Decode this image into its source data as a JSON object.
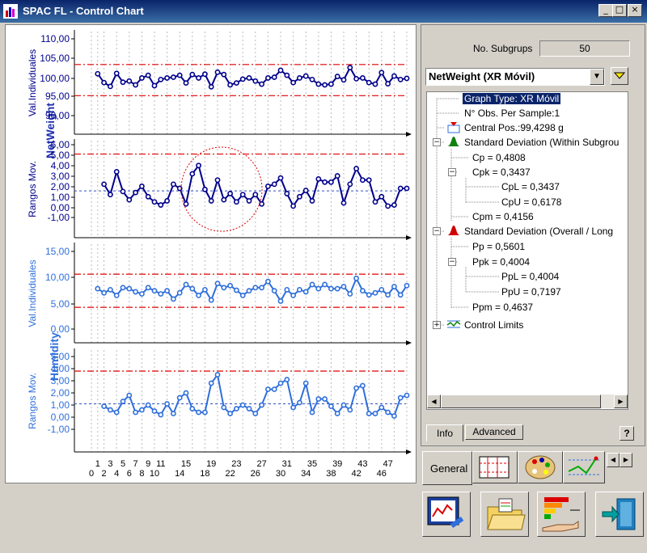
{
  "window": {
    "title": "SPAC FL - Control Chart"
  },
  "colors": {
    "series": "#00008b",
    "series2": "#2f6fdb",
    "limit": "#e00000",
    "title_blue": "#1e2fb0"
  },
  "chart": {
    "group1_title": "NetWeight",
    "group2_title": "Humidity",
    "panels": [
      {
        "ylabel": "Val.Individuales",
        "ticks": [
          "110,00",
          "105,00",
          "100,00",
          "95,00",
          "90,00"
        ]
      },
      {
        "ylabel": "Rangos Mov.",
        "ticks": [
          "6,00",
          "5,00",
          "4,00",
          "3,00",
          "2,00",
          "1,00",
          "0,00",
          "-1,00"
        ]
      },
      {
        "ylabel": "Val.Individuales",
        "ticks": [
          "15,00",
          "10,00",
          "5,00",
          "0,00"
        ]
      },
      {
        "ylabel": "Rangos Mov.",
        "ticks": [
          "5,00",
          "4,00",
          "3,00",
          "2,00",
          "1,00",
          "0,00",
          "-1,00"
        ]
      }
    ],
    "x_ticks_odd": [
      "1",
      "3",
      "5",
      "7",
      "9",
      "11",
      "15",
      "19",
      "23",
      "27",
      "31",
      "35",
      "39",
      "43",
      "47"
    ],
    "x_ticks_even": [
      "0",
      "2",
      "4",
      "6",
      "8",
      "10",
      "14",
      "18",
      "22",
      "26",
      "30",
      "34",
      "38",
      "42",
      "46"
    ]
  },
  "chart_data": [
    {
      "type": "line",
      "title": "NetWeight",
      "ylabel": "Val.Individuales",
      "ylim": [
        87,
        111
      ],
      "ucl": 103.3,
      "lcl": 95.2,
      "center": 99.43,
      "x": [
        1,
        2,
        3,
        4,
        5,
        6,
        7,
        8,
        9,
        10,
        11,
        12,
        13,
        14,
        15,
        16,
        17,
        18,
        19,
        20,
        21,
        22,
        23,
        24,
        25,
        26,
        27,
        28,
        29,
        30,
        31,
        32,
        33,
        34,
        35,
        36,
        37,
        38,
        39,
        40,
        41,
        42,
        43,
        44,
        45,
        46,
        47,
        48,
        49,
        50
      ],
      "values": [
        100.9,
        98.6,
        97.6,
        101.0,
        98.7,
        99.0,
        98.0,
        99.8,
        100.5,
        97.8,
        99.4,
        99.8,
        100.0,
        100.5,
        98.5,
        100.7,
        99.8,
        100.8,
        97.5,
        101.3,
        100.7,
        98.0,
        98.5,
        99.5,
        99.8,
        99.0,
        98.2,
        99.8,
        100.0,
        101.8,
        100.5,
        98.6,
        99.8,
        100.3,
        99.4,
        98.2,
        98.0,
        98.2,
        100.2,
        99.3,
        102.5,
        99.6,
        99.8,
        98.6,
        98.2,
        101.2,
        98.3,
        100.3,
        99.4,
        99.7
      ]
    },
    {
      "type": "line",
      "title": "NetWeight",
      "ylabel": "Rangos Mov.",
      "ylim": [
        -1.5,
        6.3
      ],
      "ucl": 5.1,
      "center": 1.56,
      "x": [
        2,
        3,
        4,
        5,
        6,
        7,
        8,
        9,
        10,
        11,
        12,
        13,
        14,
        15,
        16,
        17,
        18,
        19,
        20,
        21,
        22,
        23,
        24,
        25,
        26,
        27,
        28,
        29,
        30,
        31,
        32,
        33,
        34,
        35,
        36,
        37,
        38,
        39,
        40,
        41,
        42,
        43,
        44,
        45,
        46,
        47,
        48,
        49,
        50
      ],
      "values": [
        2.2,
        1.2,
        3.4,
        1.5,
        0.7,
        1.4,
        2.0,
        1.0,
        0.5,
        0.2,
        0.6,
        2.2,
        1.8,
        0.3,
        3.2,
        4.0,
        1.7,
        0.6,
        2.6,
        0.7,
        1.3,
        0.5,
        1.2,
        0.6,
        1.2,
        0.3,
        2.0,
        2.2,
        2.8,
        1.3,
        0.1,
        1.0,
        1.6,
        0.6,
        2.7,
        2.4,
        2.4,
        3.0,
        0.4,
        2.2,
        3.7,
        2.6,
        2.6,
        0.5,
        1.0,
        0.1,
        0.2,
        1.8,
        1.8
      ]
    },
    {
      "type": "line",
      "title": "Humidity",
      "ylabel": "Val.Individuales",
      "ylim": [
        -3,
        16
      ],
      "ucl": 10.6,
      "lcl": 4.2,
      "center": 7.4,
      "x": [
        1,
        2,
        3,
        4,
        5,
        6,
        7,
        8,
        9,
        10,
        11,
        12,
        13,
        14,
        15,
        16,
        17,
        18,
        19,
        20,
        21,
        22,
        23,
        24,
        25,
        26,
        27,
        28,
        29,
        30,
        31,
        32,
        33,
        34,
        35,
        36,
        37,
        38,
        39,
        40,
        41,
        42,
        43,
        44,
        45,
        46,
        47,
        48,
        49,
        50
      ],
      "values": [
        7.8,
        7.0,
        7.6,
        6.5,
        8.0,
        7.8,
        7.2,
        6.8,
        8.0,
        7.4,
        6.8,
        7.4,
        5.8,
        7.0,
        8.6,
        7.8,
        6.5,
        7.6,
        5.6,
        8.8,
        8.0,
        8.4,
        7.5,
        6.5,
        7.4,
        8.0,
        8.0,
        9.2,
        7.4,
        5.4,
        7.6,
        6.5,
        7.6,
        7.2,
        8.6,
        7.8,
        8.6,
        7.8,
        7.8,
        8.2,
        6.8,
        9.8,
        7.4,
        6.6,
        7.0,
        7.6,
        6.6,
        8.2,
        6.6,
        8.4
      ]
    },
    {
      "type": "line",
      "title": "Humidity",
      "ylabel": "Rangos Mov.",
      "ylim": [
        -1.5,
        5.3
      ],
      "ucl": 3.8,
      "center": 1.1,
      "x": [
        2,
        3,
        4,
        5,
        6,
        7,
        8,
        9,
        10,
        11,
        12,
        13,
        14,
        15,
        16,
        17,
        18,
        19,
        20,
        21,
        22,
        23,
        24,
        25,
        26,
        27,
        28,
        29,
        30,
        31,
        32,
        33,
        34,
        35,
        36,
        37,
        38,
        39,
        40,
        41,
        42,
        43,
        44,
        45,
        46,
        47,
        48,
        49,
        50
      ],
      "values": [
        0.9,
        0.6,
        0.4,
        1.3,
        1.8,
        0.4,
        0.6,
        1.0,
        0.5,
        0.2,
        1.1,
        0.3,
        1.6,
        2.0,
        0.7,
        0.4,
        0.4,
        2.8,
        3.5,
        0.8,
        0.3,
        0.7,
        1.0,
        0.7,
        0.3,
        1.0,
        2.3,
        2.3,
        2.8,
        3.1,
        0.8,
        1.2,
        2.8,
        0.4,
        1.5,
        1.5,
        0.9,
        0.3,
        1.0,
        0.6,
        2.4,
        2.6,
        0.3,
        0.3,
        0.8,
        0.4,
        0.1,
        1.6,
        1.8
      ]
    }
  ],
  "right_panel": {
    "subgroups_label": "No. Subgrups",
    "subgroups_value": "50",
    "variable_select": "NetWeight (XR Móvil)",
    "tree": {
      "graph_type": "Graph Type: XR Móvil",
      "obs_per_sample": "N° Obs. Per Sample:1",
      "central_pos": "Central Pos.:99,4298 g",
      "within": "Standard Deviation (Within Subgrou",
      "cp": "Cp = 0,4808",
      "cpk": "Cpk = 0,3437",
      "cpl": "CpL = 0,3437",
      "cpu": "CpU = 0,6178",
      "cpm": "Cpm = 0,4156",
      "overall": "Standard Deviation (Overall / Long",
      "pp": "Pp = 0,5601",
      "ppk": "Ppk = 0,4004",
      "ppl": "PpL = 0,4004",
      "ppu": "PpU = 0,7197",
      "ppm": "Ppm = 0,4637",
      "control_limits": "Control Limits"
    },
    "tab_info": "Info",
    "tab_advanced": "Advanced",
    "help_label": "?",
    "general_tab": "General"
  }
}
